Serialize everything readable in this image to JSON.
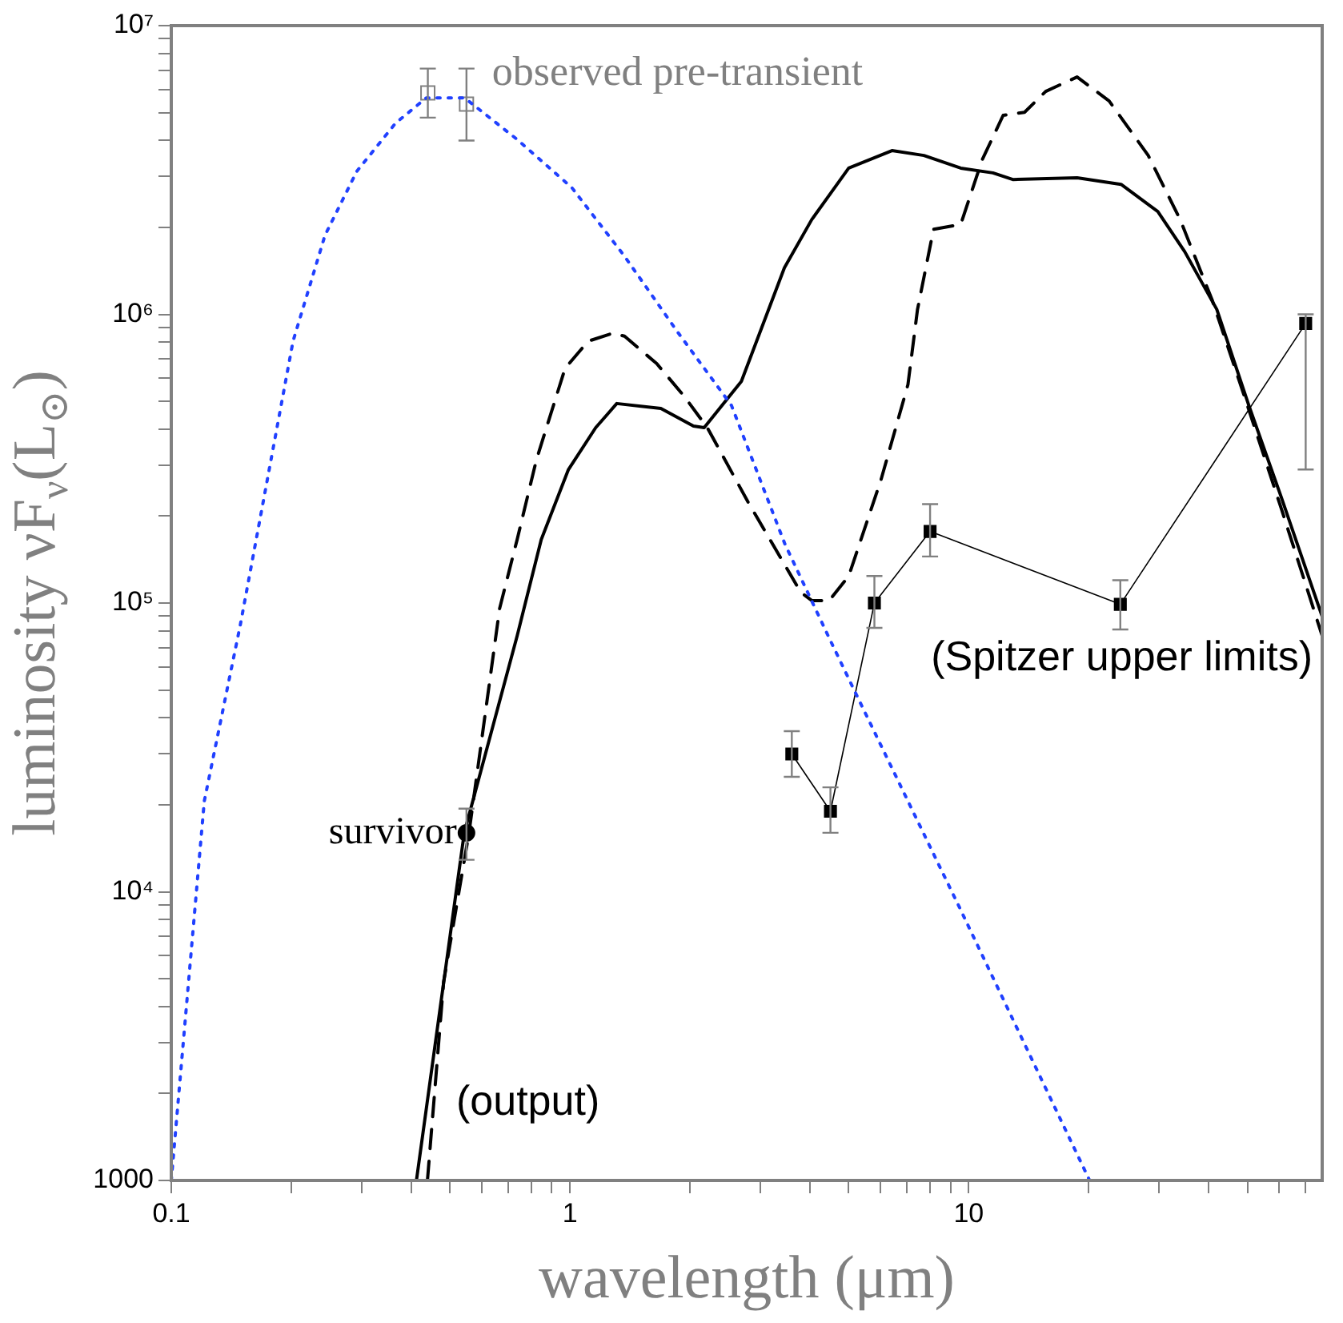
{
  "chart_data": {
    "type": "line",
    "xlabel": "wavelength (μm)",
    "ylabel": "luminosity νF$_{ν}$(L$_{⊙}$)",
    "log": "xy",
    "grid": false,
    "legend": false,
    "xlim": [
      0.1,
      77
    ],
    "ylim": [
      1000,
      10000000
    ],
    "xticks": [
      0.1,
      {
        "value": 0.2,
        "label": null
      },
      {
        "value": 0.3,
        "label": null
      },
      {
        "value": 0.4,
        "label": null
      },
      {
        "value": 0.5,
        "label": null
      },
      {
        "value": 0.6,
        "label": null
      },
      {
        "value": 0.7,
        "label": null
      },
      {
        "value": 0.8,
        "label": null
      },
      {
        "value": 0.9,
        "label": null
      },
      1,
      {
        "value": 2,
        "label": null
      },
      {
        "value": 3,
        "label": null
      },
      {
        "value": 4,
        "label": null
      },
      {
        "value": 5,
        "label": null
      },
      {
        "value": 6,
        "label": null
      },
      {
        "value": 7,
        "label": null
      },
      {
        "value": 8,
        "label": null
      },
      {
        "value": 9,
        "label": null
      },
      10,
      {
        "value": 20,
        "label": null
      },
      {
        "value": 30,
        "label": null
      },
      {
        "value": 40,
        "label": null
      },
      {
        "value": 50,
        "label": null
      },
      {
        "value": 60,
        "label": null
      },
      {
        "value": 70,
        "label": null
      }
    ],
    "yticks": [
      1000,
      {
        "value": 2000,
        "label": null
      },
      {
        "value": 3000,
        "label": null
      },
      {
        "value": 4000,
        "label": null
      },
      {
        "value": 5000,
        "label": null
      },
      {
        "value": 6000,
        "label": null
      },
      {
        "value": 7000,
        "label": null
      },
      {
        "value": 8000,
        "label": null
      },
      {
        "value": 9000,
        "label": null
      },
      {
        "value": 10000,
        "label": "10⁴"
      },
      {
        "value": 20000,
        "label": null
      },
      {
        "value": 30000,
        "label": null
      },
      {
        "value": 40000,
        "label": null
      },
      {
        "value": 50000,
        "label": null
      },
      {
        "value": 60000,
        "label": null
      },
      {
        "value": 70000,
        "label": null
      },
      {
        "value": 80000,
        "label": null
      },
      {
        "value": 90000,
        "label": null
      },
      {
        "value": 100000,
        "label": "10⁵"
      },
      {
        "value": 200000,
        "label": null
      },
      {
        "value": 300000,
        "label": null
      },
      {
        "value": 400000,
        "label": null
      },
      {
        "value": 500000,
        "label": null
      },
      {
        "value": 600000,
        "label": null
      },
      {
        "value": 700000,
        "label": null
      },
      {
        "value": 800000,
        "label": null
      },
      {
        "value": 900000,
        "label": null
      },
      {
        "value": 1000000,
        "label": "10⁶"
      },
      {
        "value": 2000000,
        "label": null
      },
      {
        "value": 3000000,
        "label": null
      },
      {
        "value": 4000000,
        "label": null
      },
      {
        "value": 5000000,
        "label": null
      },
      {
        "value": 6000000,
        "label": null
      },
      {
        "value": 7000000,
        "label": null
      },
      {
        "value": 8000000,
        "label": null
      },
      {
        "value": 9000000,
        "label": null
      },
      {
        "value": 10000000,
        "label": "10⁷"
      }
    ],
    "annotations": [
      "(output)"
    ],
    "series": [
      {
        "type": "line",
        "line_style": "dotted",
        "marker": "none",
        "color": "#2040ff",
        "x": [
          0.1,
          0.121,
          0.149,
          0.174,
          0.202,
          0.243,
          0.292,
          0.365,
          0.436,
          0.544,
          0.736,
          1.01,
          1.37,
          1.86,
          2.54,
          3.46,
          4.44,
          5.14,
          9.5,
          20.1
        ],
        "values": [
          1000,
          20600,
          84100,
          266000,
          807000,
          1880000,
          3130000,
          4590000,
          5620000,
          5620000,
          4040000,
          2750000,
          1590000,
          870000,
          484000,
          160000,
          77000,
          50500,
          8770,
          1000
        ]
      },
      {
        "type": "line",
        "line_style": "solid",
        "marker": "none",
        "color": "#000000",
        "x": [
          0.412,
          0.543,
          0.737,
          0.847,
          0.991,
          1.16,
          1.31,
          1.69,
          2.04,
          2.17,
          2.69,
          3.45,
          4.04,
          5.0,
          6.42,
          7.72,
          9.55,
          11.5,
          12.9,
          18.7,
          24.1,
          29.8,
          34.8,
          41.9,
          50.4,
          60.7,
          77
        ],
        "values": [
          1000,
          16000,
          77000,
          166000,
          290000,
          405000,
          491000,
          472000,
          410000,
          405000,
          586000,
          1450000,
          2130000,
          3210000,
          3690000,
          3550000,
          3210000,
          3090000,
          2930000,
          2970000,
          2820000,
          2270000,
          1650000,
          1040000,
          484000,
          234000,
          89800
        ]
      },
      {
        "type": "line",
        "line_style": "dashed",
        "marker": "none",
        "color": "#000000",
        "x": [
          0.439,
          0.482,
          0.558,
          0.666,
          0.737,
          0.824,
          0.972,
          1.11,
          1.28,
          1.37,
          1.65,
          1.93,
          2.21,
          2.79,
          3.79,
          4.04,
          4.47,
          5.0,
          6.02,
          7.04,
          7.44,
          8.16,
          9.55,
          10.8,
          12.2,
          13.8,
          15.6,
          18.7,
          22.5,
          28.2,
          33.9,
          40.8,
          49.1,
          60.7,
          77
        ],
        "values": [
          1000,
          4870,
          16000,
          95700,
          166000,
          314000,
          650000,
          807000,
          860000,
          840000,
          675000,
          522000,
          405000,
          225000,
          109000,
          102000,
          102000,
          124000,
          266000,
          571000,
          1040000,
          1970000,
          2050000,
          3420000,
          4890000,
          5010000,
          5920000,
          6640000,
          5480000,
          3550000,
          2130000,
          1120000,
          522000,
          214000,
          77000
        ]
      },
      {
        "type": "line",
        "name": "(Spitzer upper limits)",
        "line_style": "solid",
        "marker": "square",
        "color": "#000000",
        "x": [
          3.6,
          4.5,
          5.8,
          8.0,
          24,
          70
        ],
        "values": [
          30000,
          19000,
          100000,
          177000,
          99000,
          930000
        ],
        "errors": [
          [
            25000,
            36000
          ],
          [
            16000,
            23000
          ],
          [
            82000,
            124000
          ],
          [
            145000,
            220000
          ],
          [
            81000,
            120000
          ],
          [
            290000,
            1000000
          ]
        ]
      },
      {
        "type": "scatter",
        "name": "observed pre-transient",
        "marker": "square",
        "color": "#808080",
        "x": [
          0.44,
          0.55
        ],
        "values": [
          5850000,
          5350000
        ],
        "errors": [
          [
            4800000,
            7100000
          ],
          [
            4000000,
            7100000
          ]
        ]
      },
      {
        "type": "scatter",
        "name": "survivor",
        "marker": "circle",
        "color": "#000000",
        "x": [
          0.55
        ],
        "values": [
          16000
        ],
        "errors": [
          [
            12900,
            19400
          ]
        ]
      }
    ]
  }
}
